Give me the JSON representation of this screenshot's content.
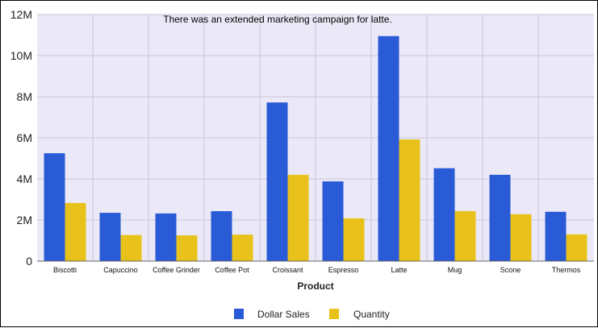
{
  "chart_data": {
    "type": "bar",
    "title": "",
    "annotation": "There was an extended marketing campaign for latte.",
    "xlabel": "Product",
    "ylabel": "",
    "ylim": [
      0,
      12000000
    ],
    "yticks": [
      {
        "value": 0,
        "label": "0"
      },
      {
        "value": 2000000,
        "label": "2M"
      },
      {
        "value": 4000000,
        "label": "4M"
      },
      {
        "value": 6000000,
        "label": "6M"
      },
      {
        "value": 8000000,
        "label": "8M"
      },
      {
        "value": 10000000,
        "label": "10M"
      },
      {
        "value": 12000000,
        "label": "12M"
      }
    ],
    "categories": [
      "Biscotti",
      "Capuccino",
      "Coffee Grinder",
      "Coffee Pot",
      "Croissant",
      "Espresso",
      "Latte",
      "Mug",
      "Scone",
      "Thermos"
    ],
    "series": [
      {
        "name": "Dollar Sales",
        "color": "#2a5bd7",
        "values": [
          5250000,
          2350000,
          2320000,
          2430000,
          7720000,
          3880000,
          10950000,
          4520000,
          4200000,
          2400000
        ]
      },
      {
        "name": "Quantity",
        "color": "#e8c21a",
        "values": [
          2830000,
          1270000,
          1250000,
          1290000,
          4200000,
          2080000,
          5920000,
          2430000,
          2280000,
          1300000
        ]
      }
    ],
    "grid": true,
    "legend_position": "bottom-center",
    "plot_background": "#ebe9f7",
    "grid_color": "#c8c6d8"
  }
}
